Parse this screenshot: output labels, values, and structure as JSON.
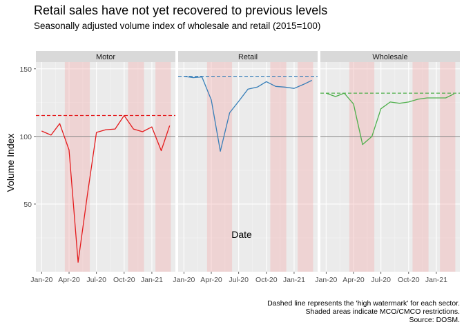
{
  "chart_data": {
    "type": "line",
    "title": "Retail sales have not yet recovered to previous levels",
    "subtitle": "Seasonally adjusted volume index of wholesale and retail (2015=100)",
    "xlabel": "Date",
    "ylabel": "Volume Index",
    "ylim": [
      0,
      155
    ],
    "yticks": [
      50,
      100,
      150
    ],
    "ytick_labels": [
      "50",
      "100",
      "150"
    ],
    "xticks": [
      "Jan-20",
      "Apr-20",
      "Jul-20",
      "Oct-20",
      "Jan-21"
    ],
    "x": [
      "2020-01",
      "2020-02",
      "2020-03",
      "2020-04",
      "2020-05",
      "2020-06",
      "2020-07",
      "2020-08",
      "2020-09",
      "2020-10",
      "2020-11",
      "2020-12",
      "2021-01",
      "2021-02",
      "2021-03"
    ],
    "reference_line": 100,
    "shaded_periods": [
      [
        "2020-03-18",
        "2020-06-09"
      ],
      [
        "2020-10-14",
        "2020-12-06"
      ],
      [
        "2021-01-13",
        "2021-03-05"
      ]
    ],
    "panels": [
      {
        "name": "Motor",
        "color": "#e41a1c",
        "high_watermark": 115.5,
        "values": [
          104,
          101,
          109.5,
          90,
          7,
          57,
          103,
          105,
          105.5,
          115.5,
          105.5,
          103.5,
          107,
          89.5,
          108
        ]
      },
      {
        "name": "Retail",
        "color": "#377eb8",
        "high_watermark": 144.5,
        "values": [
          144.5,
          143.5,
          144,
          127,
          89,
          117.5,
          126,
          135,
          136.5,
          140.5,
          137,
          136.5,
          135.5,
          138.5,
          141.5
        ]
      },
      {
        "name": "Wholesale",
        "color": "#4daf4a",
        "high_watermark": 132,
        "values": [
          132,
          129.5,
          132,
          124,
          94,
          100,
          120.5,
          125.5,
          124.5,
          125.5,
          127.5,
          128.5,
          128.5,
          128.5,
          131.5
        ]
      }
    ],
    "caption": [
      "Dashed line represents the 'high watermark' for each sector.",
      "Shaded areas indicate MCO/CMCO restrictions.",
      "Source: DOSM."
    ],
    "legend": "none",
    "grid": true
  }
}
